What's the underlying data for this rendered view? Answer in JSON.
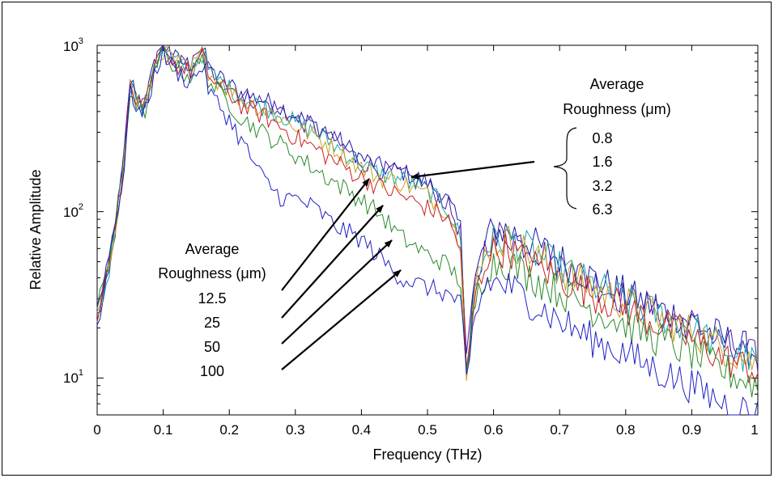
{
  "chart_data": {
    "type": "line",
    "title": "",
    "xlabel": "Frequency (THz)",
    "ylabel": "Relative Amplitude",
    "xlim": [
      0,
      1
    ],
    "ylim": [
      6,
      1000
    ],
    "yscale": "log",
    "grid": false,
    "x_ticks": [
      "0",
      "0.1",
      "0.2",
      "0.3",
      "0.4",
      "0.5",
      "0.6",
      "0.7",
      "0.8",
      "0.9",
      "1"
    ],
    "y_ticks": [
      {
        "base": "10",
        "exp": "1"
      },
      {
        "base": "10",
        "exp": "2"
      },
      {
        "base": "10",
        "exp": "3"
      }
    ],
    "series": [
      {
        "color": "#1a1aa0",
        "x": [
          0,
          0.02,
          0.04,
          0.05,
          0.07,
          0.09,
          0.1,
          0.12,
          0.14,
          0.16,
          0.17,
          0.2,
          0.22,
          0.25,
          0.28,
          0.3,
          0.33,
          0.36,
          0.4,
          0.43,
          0.46,
          0.5,
          0.53,
          0.55,
          0.56,
          0.57,
          0.59,
          0.62,
          0.65,
          0.7,
          0.75,
          0.8,
          0.85,
          0.9,
          0.95,
          1.0
        ],
        "y": [
          20,
          45,
          200,
          620,
          420,
          850,
          980,
          820,
          760,
          940,
          700,
          580,
          510,
          470,
          420,
          380,
          330,
          280,
          210,
          185,
          175,
          150,
          118,
          80,
          12,
          35,
          72,
          78,
          68,
          52,
          40,
          32,
          26,
          22,
          17,
          14
        ]
      },
      {
        "color": "#4a1aa8",
        "x": [
          0,
          0.02,
          0.04,
          0.05,
          0.07,
          0.09,
          0.1,
          0.12,
          0.14,
          0.16,
          0.17,
          0.2,
          0.22,
          0.25,
          0.28,
          0.3,
          0.33,
          0.36,
          0.4,
          0.43,
          0.46,
          0.5,
          0.53,
          0.55,
          0.56,
          0.57,
          0.59,
          0.62,
          0.65,
          0.7,
          0.75,
          0.8,
          0.85,
          0.9,
          0.95,
          1.0
        ],
        "y": [
          22,
          50,
          195,
          600,
          410,
          830,
          960,
          800,
          740,
          920,
          690,
          570,
          500,
          455,
          405,
          360,
          315,
          265,
          200,
          178,
          168,
          142,
          112,
          75,
          11,
          33,
          68,
          74,
          64,
          49,
          38,
          30,
          25,
          21,
          16,
          13
        ]
      },
      {
        "color": "#18a8a8",
        "x": [
          0,
          0.02,
          0.04,
          0.05,
          0.07,
          0.09,
          0.1,
          0.12,
          0.14,
          0.16,
          0.17,
          0.2,
          0.22,
          0.25,
          0.28,
          0.3,
          0.33,
          0.36,
          0.4,
          0.43,
          0.46,
          0.5,
          0.53,
          0.55,
          0.56,
          0.57,
          0.59,
          0.62,
          0.65,
          0.7,
          0.75,
          0.8,
          0.85,
          0.9,
          0.95,
          1.0
        ],
        "y": [
          21,
          48,
          190,
          590,
          400,
          820,
          950,
          790,
          720,
          900,
          680,
          550,
          480,
          430,
          380,
          340,
          300,
          250,
          190,
          168,
          158,
          133,
          105,
          70,
          10,
          31,
          64,
          70,
          60,
          46,
          36,
          29,
          24,
          20,
          15,
          12
        ]
      },
      {
        "color": "#c8a020",
        "x": [
          0,
          0.02,
          0.04,
          0.05,
          0.07,
          0.09,
          0.1,
          0.12,
          0.14,
          0.16,
          0.17,
          0.2,
          0.22,
          0.25,
          0.28,
          0.3,
          0.33,
          0.36,
          0.4,
          0.43,
          0.46,
          0.5,
          0.53,
          0.55,
          0.56,
          0.57,
          0.59,
          0.62,
          0.65,
          0.7,
          0.75,
          0.8,
          0.85,
          0.9,
          0.95,
          1.0
        ],
        "y": [
          23,
          52,
          185,
          580,
          395,
          810,
          940,
          780,
          710,
          890,
          670,
          540,
          470,
          415,
          365,
          325,
          285,
          240,
          183,
          160,
          150,
          126,
          100,
          66,
          10,
          30,
          62,
          67,
          58,
          44,
          35,
          28,
          23,
          19,
          15,
          12
        ]
      },
      {
        "color": "#c82020",
        "x": [
          0,
          0.02,
          0.04,
          0.05,
          0.07,
          0.09,
          0.1,
          0.12,
          0.14,
          0.16,
          0.17,
          0.2,
          0.22,
          0.25,
          0.28,
          0.3,
          0.33,
          0.36,
          0.4,
          0.43,
          0.46,
          0.5,
          0.53,
          0.55,
          0.56,
          0.57,
          0.59,
          0.62,
          0.65,
          0.7,
          0.75,
          0.8,
          0.85,
          0.9,
          0.95,
          1.0
        ],
        "y": [
          24,
          55,
          180,
          560,
          380,
          790,
          920,
          760,
          690,
          860,
          640,
          510,
          430,
          380,
          320,
          280,
          240,
          200,
          160,
          140,
          125,
          105,
          92,
          60,
          9,
          28,
          55,
          60,
          50,
          40,
          32,
          26,
          21,
          17,
          13,
          11
        ]
      },
      {
        "color": "#2a8a2a",
        "x": [
          0,
          0.02,
          0.04,
          0.05,
          0.07,
          0.09,
          0.1,
          0.12,
          0.14,
          0.16,
          0.17,
          0.2,
          0.22,
          0.25,
          0.28,
          0.3,
          0.33,
          0.36,
          0.4,
          0.43,
          0.46,
          0.5,
          0.53,
          0.55,
          0.56,
          0.57,
          0.59,
          0.62,
          0.65,
          0.7,
          0.75,
          0.8,
          0.85,
          0.9,
          0.95,
          1.0
        ],
        "y": [
          25,
          58,
          175,
          540,
          370,
          770,
          900,
          730,
          650,
          820,
          600,
          450,
          360,
          300,
          250,
          220,
          180,
          150,
          118,
          95,
          70,
          55,
          48,
          38,
          8,
          26,
          48,
          50,
          42,
          33,
          26,
          21,
          17,
          14,
          11,
          9
        ]
      },
      {
        "color": "#2020c8",
        "x": [
          0,
          0.02,
          0.04,
          0.05,
          0.07,
          0.09,
          0.1,
          0.12,
          0.14,
          0.16,
          0.17,
          0.2,
          0.22,
          0.25,
          0.28,
          0.3,
          0.33,
          0.36,
          0.4,
          0.43,
          0.46,
          0.5,
          0.53,
          0.55,
          0.56,
          0.57,
          0.59,
          0.62,
          0.65,
          0.7,
          0.75,
          0.8,
          0.85,
          0.9,
          0.95,
          1.0
        ],
        "y": [
          26,
          60,
          170,
          520,
          360,
          750,
          880,
          700,
          600,
          760,
          520,
          360,
          260,
          160,
          120,
          120,
          105,
          82,
          68,
          52,
          40,
          35,
          32,
          28,
          8,
          22,
          38,
          36,
          30,
          22,
          17,
          14,
          11,
          9,
          7,
          6
        ]
      }
    ],
    "annotations": {
      "right_group": {
        "heading": [
          "Average",
          "Roughness (μm)"
        ],
        "values": [
          "0.8",
          "1.6",
          "3.2",
          "6.3"
        ]
      },
      "left_group": {
        "heading": [
          "Average",
          "Roughness (μm)"
        ],
        "values": [
          "12.5",
          "25",
          "50",
          "100"
        ]
      }
    }
  }
}
